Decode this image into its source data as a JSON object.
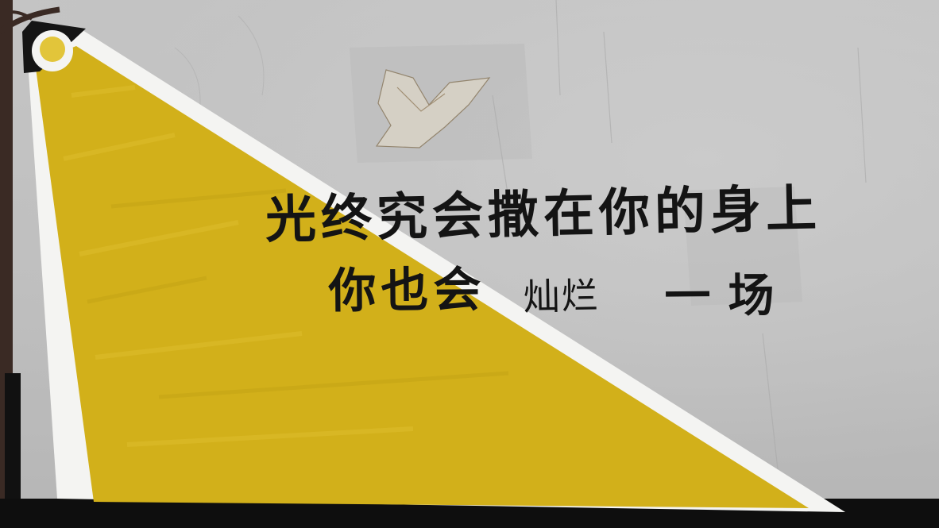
{
  "mural": {
    "slogan": {
      "line1": "光终究会撒在你的身上",
      "line2_part1": "你也会",
      "line2_part2": "灿烂",
      "line2_part3": "一场"
    },
    "colors": {
      "wall": "#bdbdbd",
      "beam_yellow": "#d2b01a",
      "beam_edge": "#f4f4f2",
      "lamp_head": "#151515",
      "lamp_bulb": "#e2c53a",
      "pole": "#3a2a24",
      "ground": "#0e0e0e",
      "text": "#141414"
    },
    "elements": [
      "street-lamp",
      "light-beam",
      "bird-stain",
      "slogan-text"
    ]
  }
}
